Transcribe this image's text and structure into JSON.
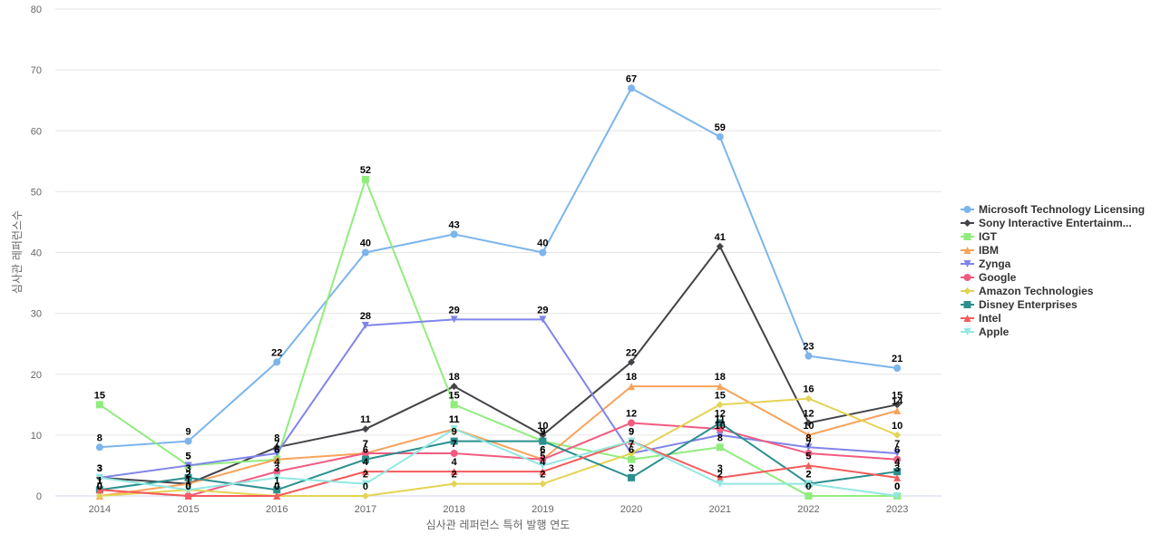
{
  "chart_data": {
    "type": "line",
    "title": "",
    "xlabel": "심사관 레퍼런스 특허 발행 연도",
    "ylabel": "심사관 레퍼런스수",
    "ylim": [
      0,
      80
    ],
    "yticks": [
      0,
      10,
      20,
      30,
      40,
      50,
      60,
      70,
      80
    ],
    "grid": true,
    "legend_position": "right",
    "x": [
      "2014",
      "2015",
      "2016",
      "2017",
      "2018",
      "2019",
      "2020",
      "2021",
      "2022",
      "2023"
    ],
    "series": [
      {
        "name": "Microsoft Technology Licensing",
        "color": "#7cb5ec",
        "marker": "circle",
        "values": [
          8,
          9,
          22,
          40,
          43,
          40,
          67,
          59,
          23,
          21
        ]
      },
      {
        "name": "Sony Interactive Entertainm...",
        "color": "#434348",
        "marker": "diamond",
        "values": [
          3,
          2,
          8,
          11,
          18,
          10,
          22,
          41,
          12,
          15
        ]
      },
      {
        "name": "IGT",
        "color": "#90ed7d",
        "marker": "square",
        "values": [
          15,
          5,
          6,
          52,
          15,
          9,
          6,
          8,
          0,
          0
        ]
      },
      {
        "name": "IBM",
        "color": "#f7a35c",
        "marker": "triangle",
        "values": [
          0,
          2,
          6,
          7,
          11,
          6,
          18,
          18,
          10,
          14
        ]
      },
      {
        "name": "Zynga",
        "color": "#8085e9",
        "marker": "triangle-down",
        "values": [
          3,
          5,
          7,
          28,
          29,
          29,
          7,
          10,
          8,
          7
        ]
      },
      {
        "name": "Google",
        "color": "#f15c80",
        "marker": "circle",
        "values": [
          1,
          0,
          4,
          7,
          7,
          6,
          12,
          11,
          7,
          6
        ]
      },
      {
        "name": "Amazon Technologies",
        "color": "#e4d354",
        "marker": "diamond",
        "values": [
          0,
          1,
          0,
          0,
          2,
          2,
          7,
          15,
          16,
          10
        ]
      },
      {
        "name": "Disney Enterprises",
        "color": "#2b908f",
        "marker": "square",
        "values": [
          1,
          3,
          1,
          6,
          9,
          9,
          3,
          12,
          2,
          4
        ]
      },
      {
        "name": "Intel",
        "color": "#f45b5b",
        "marker": "triangle",
        "values": [
          1,
          0,
          0,
          4,
          4,
          4,
          9,
          3,
          5,
          3
        ]
      },
      {
        "name": "Apple",
        "color": "#91e8e1",
        "marker": "triangle-down",
        "values": [
          3,
          1,
          3,
          2,
          11,
          5,
          9,
          2,
          2,
          0
        ]
      }
    ]
  }
}
